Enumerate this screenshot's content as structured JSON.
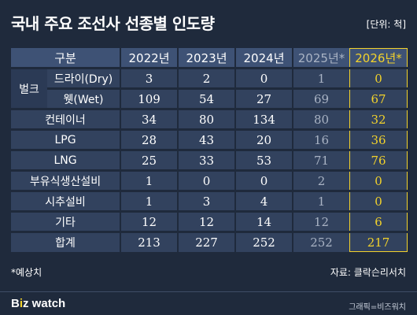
{
  "title": "국내 주요 조선사 선종별 인도량",
  "unit": "[단위: 척]",
  "footnote": "*예상치",
  "source": "자료: 클락슨리서치",
  "logo": {
    "part1": "B",
    "part2": "i",
    "part3": "z watch"
  },
  "credit": "그래픽=비즈워치",
  "colors": {
    "background": "#1f2a3c",
    "header": "#3e5275",
    "cell": "#32425e",
    "highlight": "#f2d22b",
    "estimate": "#a9b3c4"
  },
  "chart_data": {
    "type": "table",
    "header": {
      "category": "구분",
      "years": [
        "2022년",
        "2023년",
        "2024년",
        "2025년*",
        "2026년*"
      ]
    },
    "group_label": "벌크",
    "rows": [
      {
        "label": "드라이(Dry)",
        "values": [
          3,
          2,
          0,
          1,
          0
        ]
      },
      {
        "label": "웻(Wet)",
        "values": [
          109,
          54,
          27,
          69,
          67
        ]
      },
      {
        "label": "컨테이너",
        "values": [
          34,
          80,
          134,
          80,
          32
        ]
      },
      {
        "label": "LPG",
        "values": [
          28,
          43,
          20,
          16,
          36
        ]
      },
      {
        "label": "LNG",
        "values": [
          25,
          33,
          53,
          71,
          76
        ]
      },
      {
        "label": "부유식생산설비",
        "values": [
          1,
          0,
          0,
          2,
          0
        ]
      },
      {
        "label": "시추설비",
        "values": [
          1,
          3,
          4,
          1,
          0
        ]
      },
      {
        "label": "기타",
        "values": [
          12,
          12,
          14,
          12,
          6
        ]
      },
      {
        "label": "합계",
        "values": [
          213,
          227,
          252,
          252,
          217
        ]
      }
    ]
  }
}
